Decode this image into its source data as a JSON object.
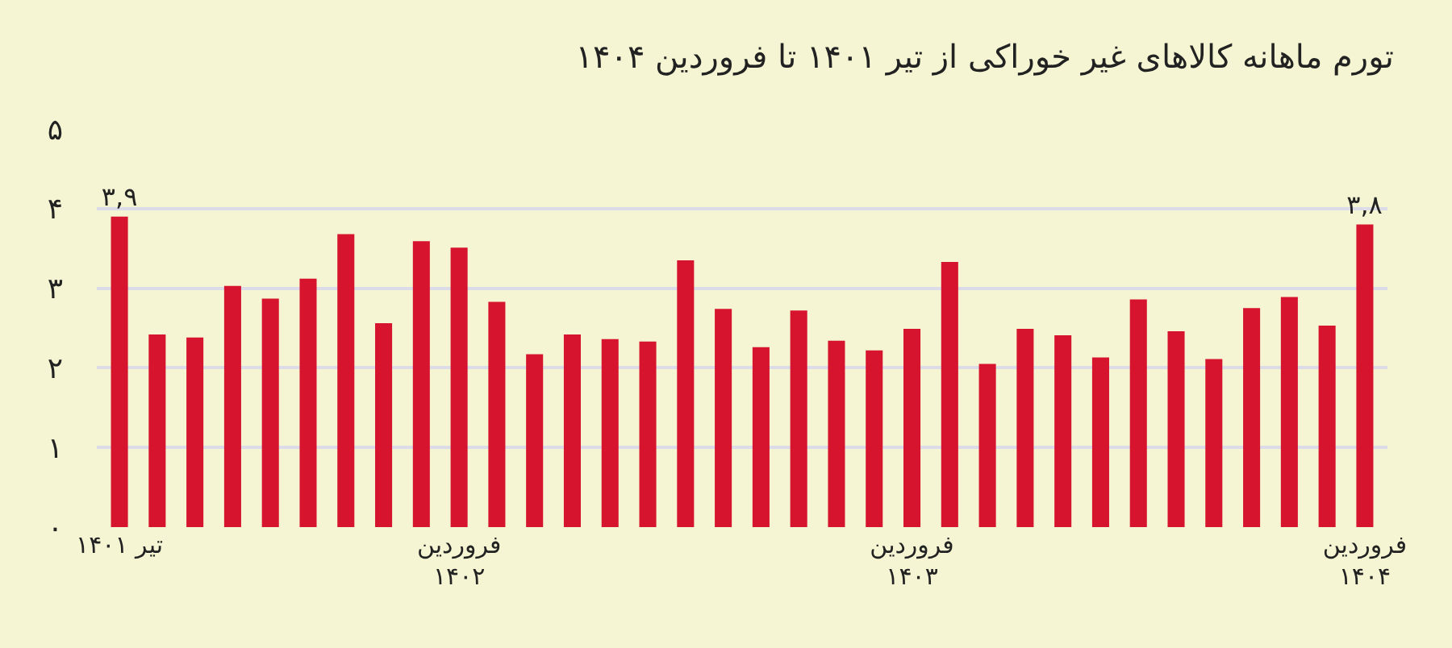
{
  "chart_data": {
    "type": "bar",
    "title": "تورم ماهانه کالاهای غیر خوراکی از تیر ۱۴۰۱ تا فروردین ۱۴۰۴",
    "categories": [
      "تیر ۱۴۰۱",
      null,
      null,
      null,
      null,
      null,
      null,
      null,
      null,
      "فروردین\n۱۴۰۲",
      null,
      null,
      null,
      null,
      null,
      null,
      null,
      null,
      null,
      null,
      null,
      "فروردین\n۱۴۰۳",
      null,
      null,
      null,
      null,
      null,
      null,
      null,
      null,
      null,
      null,
      null,
      "فروردین\n۱۴۰۴"
    ],
    "values": [
      3.9,
      2.42,
      2.38,
      3.03,
      2.87,
      3.12,
      3.68,
      2.56,
      3.59,
      3.51,
      2.83,
      2.17,
      2.42,
      2.36,
      2.33,
      3.35,
      2.74,
      2.26,
      2.72,
      2.34,
      2.22,
      2.49,
      3.33,
      2.05,
      2.49,
      2.41,
      2.13,
      2.86,
      2.46,
      2.11,
      2.75,
      2.89,
      2.53,
      3.8
    ],
    "value_labels": [
      "۳,۹",
      null,
      null,
      null,
      null,
      null,
      null,
      null,
      null,
      null,
      null,
      null,
      null,
      null,
      null,
      null,
      null,
      null,
      null,
      null,
      null,
      null,
      null,
      null,
      null,
      null,
      null,
      null,
      null,
      null,
      null,
      null,
      null,
      "۳,۸"
    ],
    "color": "#d7142e",
    "ylim": [
      0,
      5
    ],
    "yticks": [
      {
        "value": 0,
        "label": "۰"
      },
      {
        "value": 1,
        "label": "۱"
      },
      {
        "value": 2,
        "label": "۲"
      },
      {
        "value": 3,
        "label": "۳"
      },
      {
        "value": 4,
        "label": "۴"
      },
      {
        "value": 5,
        "label": "۵"
      }
    ],
    "grid": "y"
  }
}
